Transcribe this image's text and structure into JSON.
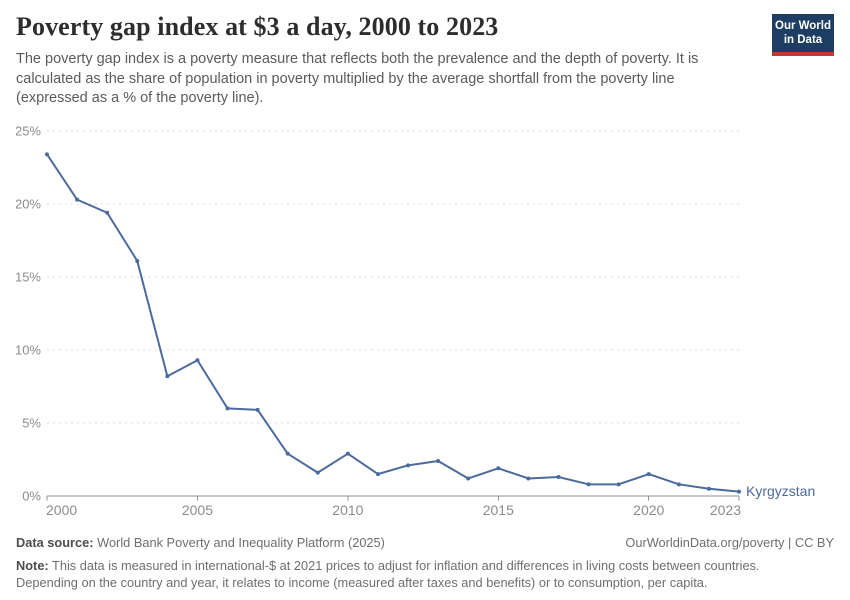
{
  "header": {
    "title": "Poverty gap index at $3 a day, 2000 to 2023",
    "subtitle": "The poverty gap index is a poverty measure that reflects both the prevalence and the depth of poverty. It is calculated as the share of population in poverty multiplied by the average shortfall from the poverty line (expressed as a % of the poverty line).",
    "logo": {
      "line1": "Our World",
      "line2": "in Data"
    }
  },
  "chart_data": {
    "type": "line",
    "title": "Poverty gap index at $3 a day, 2000 to 2023",
    "x": [
      2000,
      2001,
      2002,
      2003,
      2004,
      2005,
      2006,
      2007,
      2008,
      2009,
      2010,
      2011,
      2012,
      2013,
      2014,
      2015,
      2016,
      2017,
      2018,
      2019,
      2020,
      2021,
      2022,
      2023
    ],
    "series": [
      {
        "name": "Kyrgyzstan",
        "color": "#4C6A9C",
        "values": [
          23.4,
          20.3,
          19.4,
          16.1,
          8.2,
          9.3,
          6.0,
          5.9,
          2.9,
          1.6,
          2.9,
          1.5,
          2.1,
          2.4,
          1.2,
          1.9,
          1.2,
          1.3,
          0.8,
          0.8,
          1.5,
          0.8,
          0.5,
          0.3
        ]
      }
    ],
    "xlabel": "",
    "ylabel": "",
    "xlim": [
      2000,
      2023
    ],
    "ylim": [
      0,
      25
    ],
    "xticks": [
      2000,
      2005,
      2010,
      2015,
      2020,
      2023
    ],
    "yticks": [
      0,
      5,
      10,
      15,
      20,
      25
    ],
    "ytick_suffix": "%",
    "grid": "horizontal-dashed",
    "legend_position": "end-of-line-label",
    "end_label": "Kyrgyzstan"
  },
  "footer": {
    "datasource_label": "Data source:",
    "datasource_text": "World Bank Poverty and Inequality Platform (2025)",
    "credit": "OurWorldinData.org/poverty | CC BY",
    "note_label": "Note:",
    "note_text": "This data is measured in international-$ at 2021 prices to adjust for inflation and differences in living costs between countries. Depending on the country and year, it relates to income (measured after taxes and benefits) or to consumption, per capita."
  },
  "colors": {
    "line": "#4C6A9C",
    "axis": "#8f8f8f",
    "gridline": "#dcdcdc",
    "tick_label": "#8c8c8c",
    "logo_bg": "#1d3d63",
    "logo_bar": "#c0392b"
  }
}
